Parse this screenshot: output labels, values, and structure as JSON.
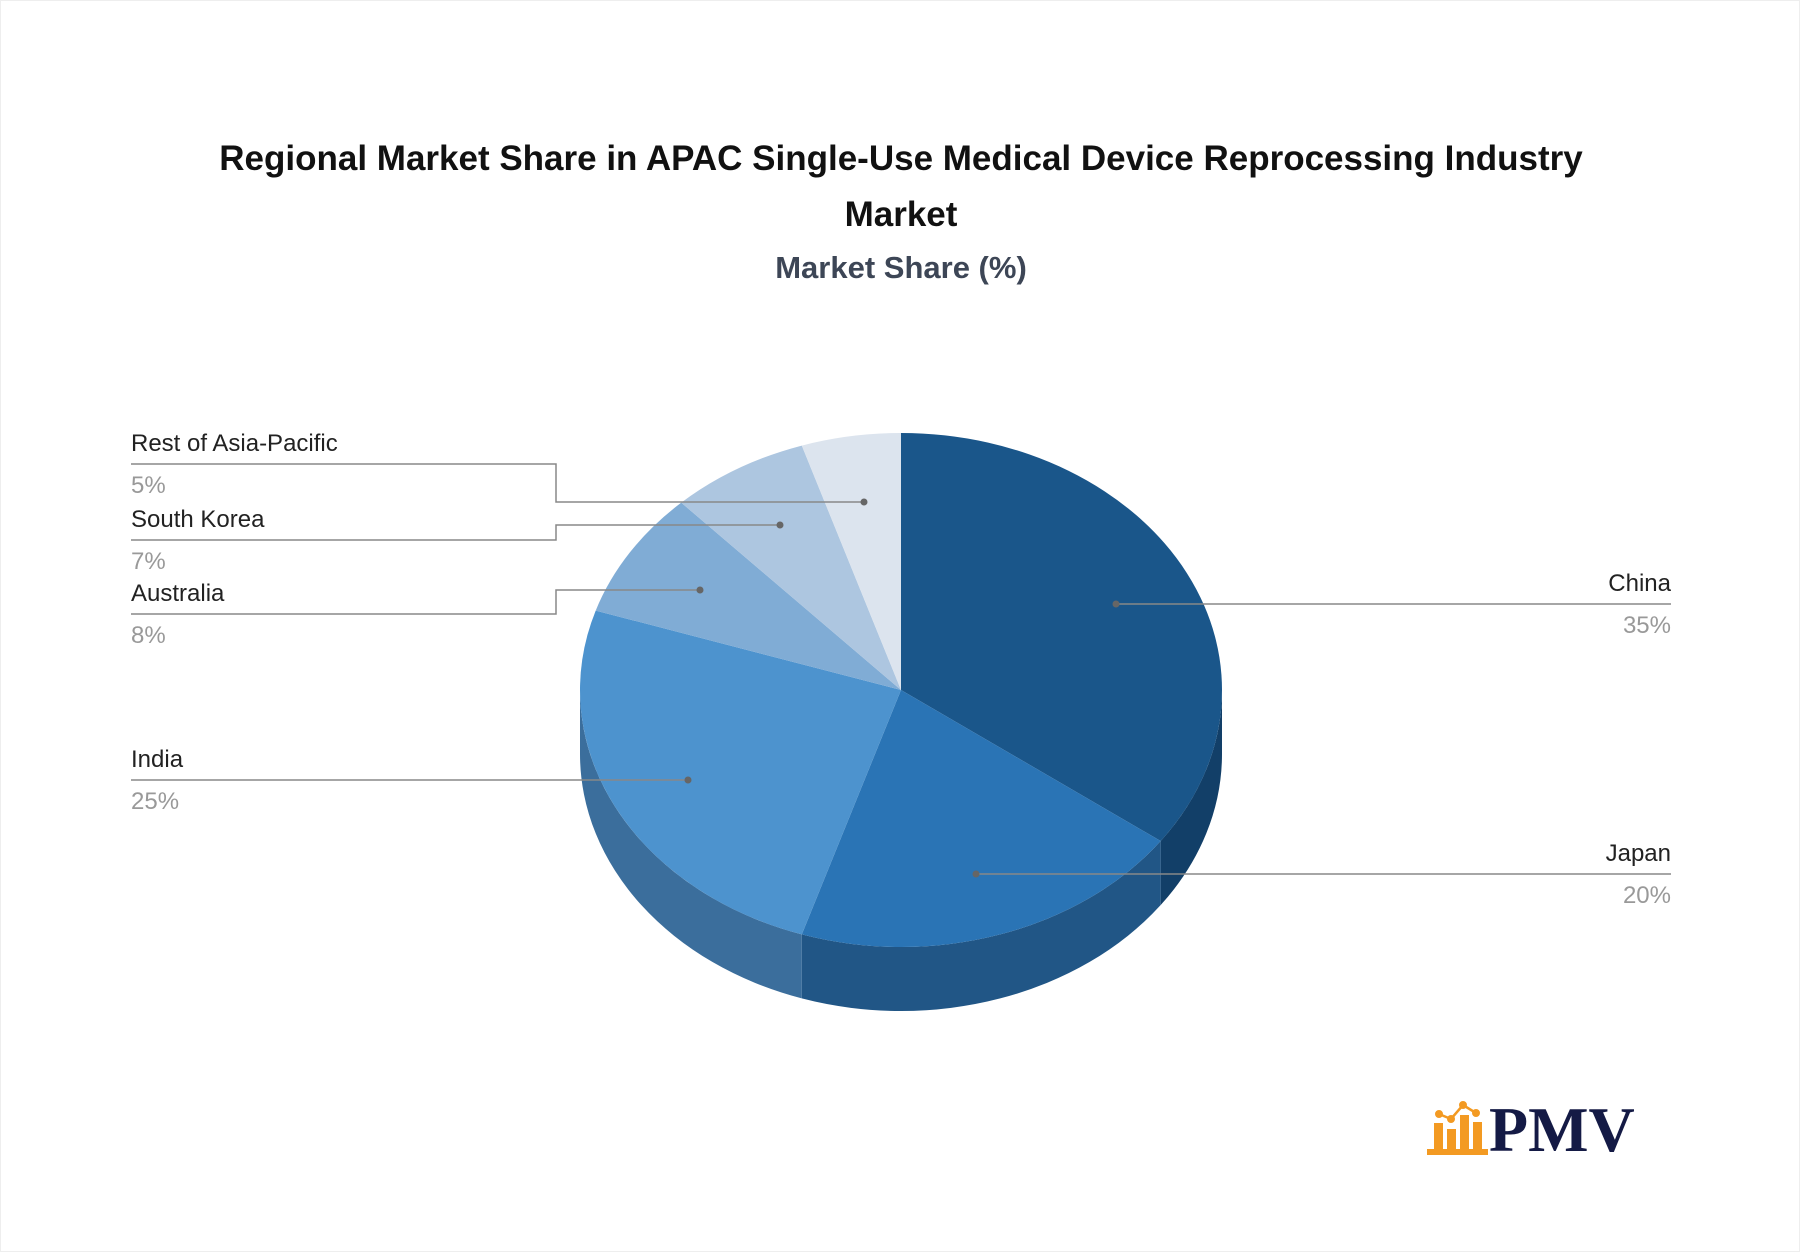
{
  "chart_data": {
    "type": "pie",
    "style": "3d",
    "title": "Regional Market Share in APAC Single-Use Medical Device Reprocessing Industry Market",
    "title_lines": [
      "Regional Market Share in APAC Single-Use Medical Device Reprocessing Industry",
      "Market"
    ],
    "subtitle": "Market Share (%)",
    "slices": [
      {
        "label": "China",
        "value": 35,
        "pct_label": "35%",
        "color": "#1a568a",
        "side": "#123f68"
      },
      {
        "label": "Japan",
        "value": 20,
        "pct_label": "20%",
        "color": "#2a74b5",
        "side": "#215686"
      },
      {
        "label": "India",
        "value": 25,
        "pct_label": "25%",
        "color": "#4d93ce",
        "side": "#3b6e9c"
      },
      {
        "label": "Australia",
        "value": 8,
        "pct_label": "8%",
        "color": "#80acd5",
        "side": "#5f86ad"
      },
      {
        "label": "South Korea",
        "value": 7,
        "pct_label": "7%",
        "color": "#adc6e0",
        "side": "#8aa3bd"
      },
      {
        "label": "Rest of Asia-Pacific",
        "value": 5,
        "pct_label": "5%",
        "color": "#dce4ee",
        "side": "#b5c0cc"
      }
    ]
  },
  "logo": {
    "text": "PMV",
    "text_color": "#141a45",
    "icon_color": "#f39a22"
  }
}
